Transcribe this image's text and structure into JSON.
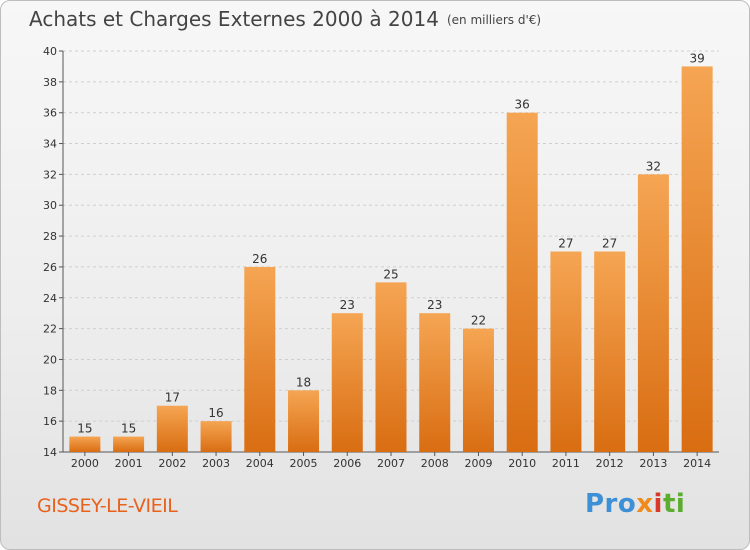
{
  "title": "Achats et Charges Externes 2000 à 2014",
  "unit": "(en milliers d'€)",
  "commune": "GISSEY-LE-VIEIL",
  "logo": {
    "p1": "Pro",
    "p2": "x",
    "p3": "i",
    "p4": "ti"
  },
  "colors": {
    "bar_light": "#f5a553",
    "bar_dark": "#d96d12",
    "title": "#444444",
    "commune": "#e8621c"
  },
  "chart_data": {
    "type": "bar",
    "categories": [
      "2000",
      "2001",
      "2002",
      "2003",
      "2004",
      "2005",
      "2006",
      "2007",
      "2008",
      "2009",
      "2010",
      "2011",
      "2012",
      "2013",
      "2014"
    ],
    "values": [
      15,
      15,
      17,
      16,
      26,
      18,
      23,
      25,
      23,
      22,
      36,
      27,
      27,
      32,
      39
    ],
    "ylim": [
      14,
      40
    ],
    "yticks": [
      14,
      16,
      18,
      20,
      22,
      24,
      26,
      28,
      30,
      32,
      34,
      36,
      38,
      40
    ],
    "grid": true,
    "data_labels": true
  }
}
